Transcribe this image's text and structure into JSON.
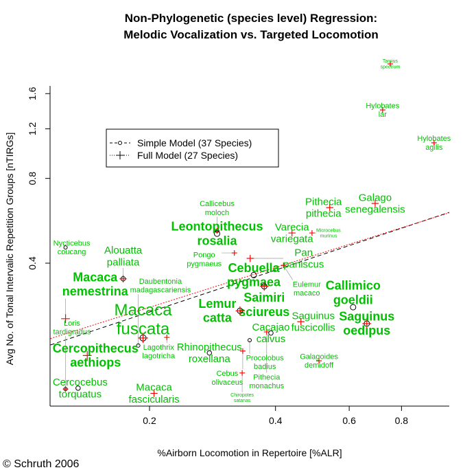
{
  "chart_data": {
    "type": "scatter",
    "title": "Non-Phylogenetic (species level) Regression:",
    "subtitle": "Melodic Vocalization vs. Targeted Locomotion",
    "xlabel": "%Airborn Locomotion in Repertoire [%ALR]",
    "ylabel": "Avg No. of Tonal Intervalic Repetition Groups [nTIRGs]",
    "x_scale": "log",
    "y_scale": "log",
    "xlim": [
      0.116,
      1.04
    ],
    "ylim": [
      0.124,
      2.1
    ],
    "x_ticks": [
      {
        "v": 0.2,
        "label": "0.2"
      },
      {
        "v": 0.4,
        "label": "0.4"
      },
      {
        "v": 0.6,
        "label": "0.6"
      },
      {
        "v": 0.8,
        "label": "0.8"
      }
    ],
    "y_ticks": [
      {
        "v": 0.4,
        "label": "0.4"
      },
      {
        "v": 0.8,
        "label": "0.8"
      },
      {
        "v": 1.2,
        "label": "1.2"
      },
      {
        "v": 1.6,
        "label": "1.6"
      }
    ],
    "grid": false,
    "legend": {
      "placement": "upper-left",
      "entries": [
        {
          "label": "Simple Model (37 Species)",
          "style": "dashed",
          "marker": "circle",
          "color": "#000000"
        },
        {
          "label": "Full Model (27 Species)",
          "style": "dotted",
          "marker": "plus",
          "color": "#000000"
        }
      ]
    },
    "regression_lines": [
      {
        "name": "Simple Model",
        "color": "#000000",
        "style": "dashed",
        "x": [
          0.116,
          1.04
        ],
        "y": [
          0.205,
          0.606
        ]
      },
      {
        "name": "Full Model",
        "color": "#ff0000",
        "style": "dotted",
        "x": [
          0.116,
          1.04
        ],
        "y": [
          0.216,
          0.604
        ]
      }
    ],
    "label_color": "#00c000",
    "points": [
      {
        "l1": "Nycticebus",
        "l2": "coucang",
        "x": 0.126,
        "y": 0.455,
        "m": "circle",
        "s": "s"
      },
      {
        "l1": "Alouatta",
        "l2": "palliata",
        "x": 0.173,
        "y": 0.352,
        "m": "both",
        "s": "m"
      },
      {
        "l1": "Macaca",
        "l2": "nemestrina",
        "x": 0.126,
        "y": 0.254,
        "m": "plus",
        "s": "b"
      },
      {
        "l1": "Daubentonia",
        "l2": "madagascariensis",
        "x": 0.188,
        "y": 0.204,
        "m": "circle",
        "s": "s"
      },
      {
        "l1": "Macaca",
        "l2": "fuscata",
        "x": 0.193,
        "y": 0.217,
        "m": "both",
        "s": "xl"
      },
      {
        "l1": "Lagothrix",
        "l2": "lagotricha",
        "x": 0.22,
        "y": 0.218,
        "m": "plus",
        "s": "s"
      },
      {
        "l1": "Cercopithecus",
        "l2": "aethiops",
        "x": 0.142,
        "y": 0.188,
        "m": "plus",
        "s": "b"
      },
      {
        "l1": "Rhinopithecus",
        "l2": "roxellana",
        "x": 0.278,
        "y": 0.192,
        "m": "circle",
        "s": "m"
      },
      {
        "l1": "Cercocebus",
        "l2": "torquatus",
        "x": 0.135,
        "y": 0.144,
        "m": "circle",
        "s": "m"
      },
      {
        "l1": "Loris",
        "l2": "tardigradus",
        "x": 0.126,
        "y": 0.143,
        "m": "both",
        "s": "s"
      },
      {
        "l1": "Macaca",
        "l2": "fascicularis",
        "x": 0.205,
        "y": 0.138,
        "m": "plus",
        "s": "m"
      },
      {
        "l1": "Callicebus",
        "l2": "moloch",
        "x": 0.29,
        "y": 0.521,
        "m": "both",
        "s": "s"
      },
      {
        "l1": "Leontopithecus",
        "l2": "rosalia",
        "x": 0.29,
        "y": 0.509,
        "m": "circle",
        "s": "b"
      },
      {
        "l1": "Pongo",
        "l2": "pygmaeus",
        "x": 0.319,
        "y": 0.435,
        "m": "plus",
        "s": "s"
      },
      {
        "l1": "Pan",
        "l2": "paniscus",
        "x": 0.348,
        "y": 0.416,
        "m": "plus",
        "s": "m"
      },
      {
        "l1": "Cebuella",
        "l2": "pygmaea",
        "x": 0.355,
        "y": 0.363,
        "m": "circle",
        "s": "b"
      },
      {
        "l1": "Saimiri",
        "l2": "sciureus",
        "x": 0.376,
        "y": 0.331,
        "m": "both",
        "s": "b"
      },
      {
        "l1": "Lemur",
        "l2": "catta",
        "x": 0.329,
        "y": 0.271,
        "m": "both",
        "s": "b"
      },
      {
        "l1": "Varecia",
        "l2": "variegata",
        "x": 0.438,
        "y": 0.512,
        "m": "plus",
        "s": "m"
      },
      {
        "l1": "Microcebus",
        "l2": "murinus",
        "x": 0.489,
        "y": 0.512,
        "m": "plus",
        "s": "t"
      },
      {
        "l1": "Eulemur",
        "l2": "macaco",
        "x": 0.418,
        "y": 0.393,
        "m": "plus",
        "s": "s"
      },
      {
        "l1": "Pithecia",
        "l2": "pithecia",
        "x": 0.539,
        "y": 0.63,
        "m": "plus",
        "s": "m"
      },
      {
        "l1": "Galago",
        "l2": "senegalensis",
        "x": 0.692,
        "y": 0.652,
        "m": "plus",
        "s": "m"
      },
      {
        "l1": "Tarsius",
        "l2": "spectrum",
        "x": 0.752,
        "y": 2.04,
        "m": "plus",
        "s": "t"
      },
      {
        "l1": "Hylobates",
        "l2": "lar",
        "x": 0.721,
        "y": 1.4,
        "m": "plus",
        "s": "s"
      },
      {
        "l1": "Hylobates",
        "l2": "agilis",
        "x": 0.957,
        "y": 1.07,
        "m": "plus",
        "s": "s"
      },
      {
        "l1": "Callimico",
        "l2": "goeldii",
        "x": 0.613,
        "y": 0.279,
        "m": "circle",
        "s": "b"
      },
      {
        "l1": "Saguinus",
        "l2": "oedipus",
        "x": 0.661,
        "y": 0.244,
        "m": "both",
        "s": "b"
      },
      {
        "l1": "Saguinus",
        "l2": "fuscicollis",
        "x": 0.46,
        "y": 0.248,
        "m": "plus",
        "s": "m"
      },
      {
        "l1": "Pithecia",
        "l2": "monachus",
        "x": 0.381,
        "y": 0.228,
        "m": "plus",
        "s": "s"
      },
      {
        "l1": "Cacajao",
        "l2": "calvus",
        "x": 0.39,
        "y": 0.226,
        "m": "circle",
        "s": "m"
      },
      {
        "l1": "Procolobus",
        "l2": "badius",
        "x": 0.347,
        "y": 0.213,
        "m": "circle",
        "s": "s"
      },
      {
        "l1": "Cebus",
        "l2": "olivaceus",
        "x": 0.334,
        "y": 0.195,
        "m": "plus",
        "s": "s"
      },
      {
        "l1": "Chiropotes",
        "l2": "satanas",
        "x": 0.333,
        "y": 0.163,
        "m": "plus",
        "s": "t"
      },
      {
        "l1": "Galagoides",
        "l2": "demidoff",
        "x": 0.508,
        "y": 0.18,
        "m": "plus",
        "s": "s"
      }
    ]
  },
  "copyright": "© Schruth 2006"
}
